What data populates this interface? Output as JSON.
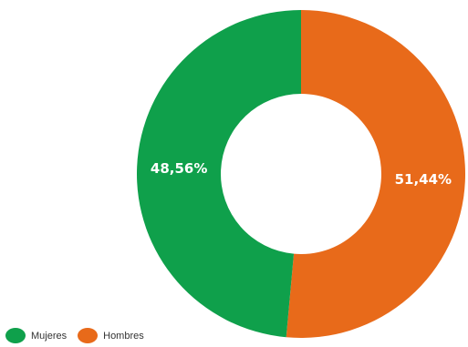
{
  "colors": {
    "mujeres": "#0fa04b",
    "hombres": "#e86a1a"
  },
  "chart_data": {
    "type": "pie",
    "variant": "donut",
    "title": "",
    "categories": [
      "Mujeres",
      "Hombres"
    ],
    "values": [
      48.56,
      51.44
    ],
    "value_labels": [
      "48,56%",
      "51,44%"
    ],
    "legend_position": "bottom-left"
  },
  "legend": {
    "items": [
      {
        "label": "Mujeres",
        "color": "#0fa04b"
      },
      {
        "label": "Hombres",
        "color": "#e86a1a"
      }
    ]
  }
}
